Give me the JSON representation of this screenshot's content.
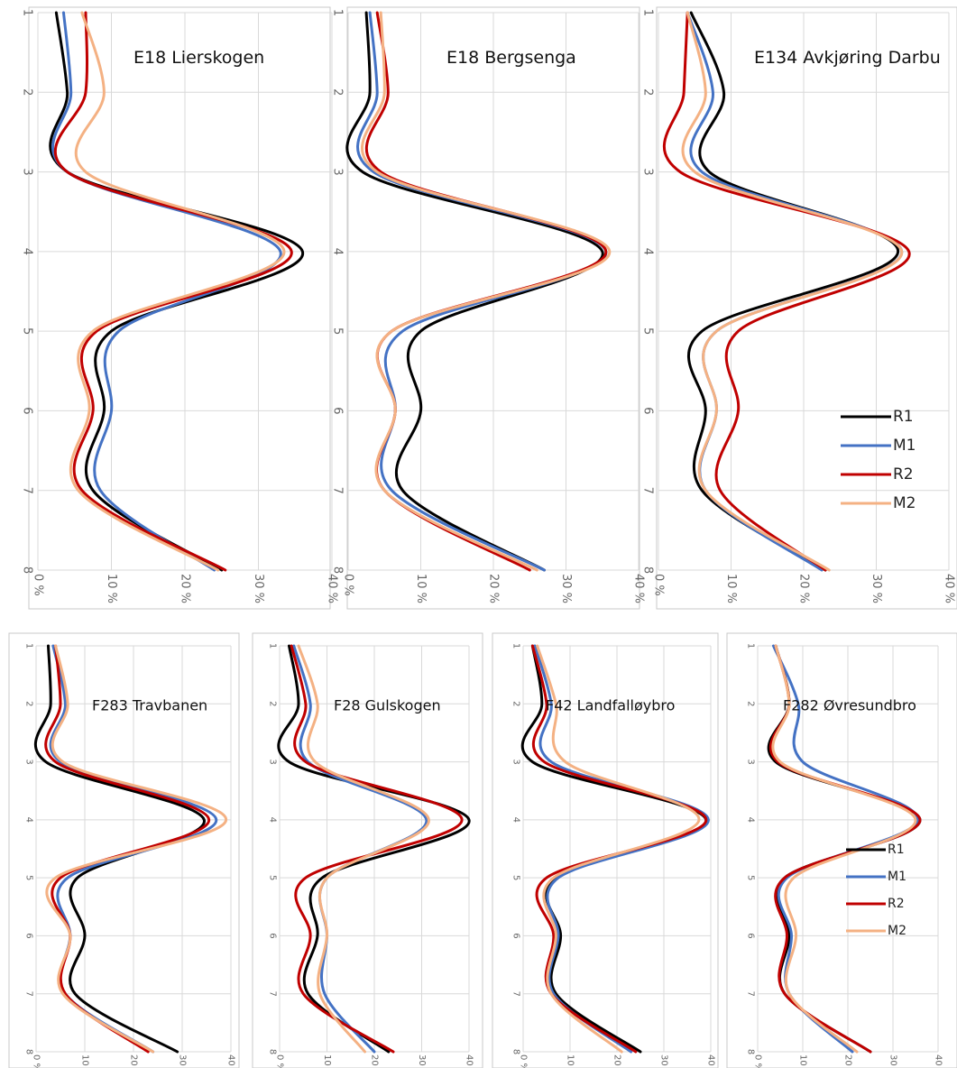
{
  "chart_data": [
    {
      "type": "line",
      "title": "E18 Lierskogen",
      "x": [
        1,
        2,
        3,
        4,
        5,
        6,
        7,
        8
      ],
      "xlim": [
        1,
        8
      ],
      "ylim": [
        0,
        40
      ],
      "x_tick_labels": [
        "1",
        "2",
        "3",
        "4",
        "5",
        "6",
        "7",
        "8"
      ],
      "y_tick_labels": [
        "0 %",
        "10 %",
        "20 %",
        "30 %",
        "40 %"
      ],
      "grid": true,
      "series": [
        {
          "name": "R1",
          "color": "#000000",
          "values": [
            2.5,
            4.0,
            4.0,
            36.0,
            10.0,
            9.0,
            7.5,
            25.0
          ]
        },
        {
          "name": "M1",
          "color": "#4472c4",
          "values": [
            3.5,
            4.5,
            4.0,
            33.0,
            11.0,
            10.0,
            8.5,
            24.0
          ]
        },
        {
          "name": "R2",
          "color": "#c00000",
          "values": [
            6.5,
            6.5,
            4.0,
            34.5,
            8.0,
            7.5,
            6.0,
            25.5
          ]
        },
        {
          "name": "M2",
          "color": "#f4b183",
          "values": [
            6.0,
            9.0,
            6.5,
            33.5,
            7.5,
            7.0,
            5.5,
            24.5
          ]
        }
      ]
    },
    {
      "type": "line",
      "title": "E18 Bergsenga",
      "x": [
        1,
        2,
        3,
        4,
        5,
        6,
        7,
        8
      ],
      "xlim": [
        1,
        8
      ],
      "ylim": [
        0,
        40
      ],
      "x_tick_labels": [
        "1",
        "2",
        "3",
        "4",
        "5",
        "6",
        "7",
        "8"
      ],
      "y_tick_labels": [
        "0 %",
        "10 %",
        "20 %",
        "30 %",
        "40 %"
      ],
      "grid": true,
      "series": [
        {
          "name": "R1",
          "color": "#000000",
          "values": [
            2.5,
            3.0,
            2.0,
            35.0,
            10.0,
            10.0,
            7.5,
            27.0
          ]
        },
        {
          "name": "M1",
          "color": "#4472c4",
          "values": [
            3.0,
            4.0,
            3.5,
            35.5,
            7.5,
            6.5,
            6.0,
            27.0
          ]
        },
        {
          "name": "R2",
          "color": "#c00000",
          "values": [
            4.0,
            5.5,
            4.5,
            35.5,
            6.0,
            6.5,
            5.0,
            25.0
          ]
        },
        {
          "name": "M2",
          "color": "#f4b183",
          "values": [
            4.5,
            5.0,
            4.0,
            36.0,
            6.0,
            6.5,
            5.0,
            26.0
          ]
        }
      ]
    },
    {
      "type": "line",
      "title": "E134 Avkjøring Darbu",
      "x": [
        1,
        2,
        3,
        4,
        5,
        6,
        7,
        8
      ],
      "xlim": [
        1,
        8
      ],
      "ylim": [
        0,
        40
      ],
      "x_tick_labels": [
        "1",
        "2",
        "3",
        "4",
        "5",
        "6",
        "7",
        "8"
      ],
      "y_tick_labels": [
        "0 %",
        "10 %",
        "20 %",
        "30 %",
        "40 %"
      ],
      "grid": true,
      "legend": {
        "position": "right"
      },
      "series": [
        {
          "name": "R1",
          "color": "#000000",
          "values": [
            4.5,
            9.0,
            7.0,
            33.0,
            6.0,
            6.5,
            6.0,
            23.0
          ]
        },
        {
          "name": "M1",
          "color": "#4472c4",
          "values": [
            4.0,
            7.5,
            6.0,
            33.5,
            8.0,
            8.0,
            6.5,
            22.5
          ]
        },
        {
          "name": "R2",
          "color": "#c00000",
          "values": [
            4.0,
            3.5,
            3.0,
            34.5,
            11.0,
            11.0,
            8.5,
            23.0
          ]
        },
        {
          "name": "M2",
          "color": "#f4b183",
          "values": [
            4.0,
            6.5,
            5.0,
            33.5,
            8.0,
            8.0,
            6.5,
            23.5
          ]
        }
      ]
    },
    {
      "type": "line",
      "title": "F283 Travbanen",
      "x": [
        1,
        2,
        3,
        4,
        5,
        6,
        7,
        8
      ],
      "xlim": [
        1,
        8
      ],
      "ylim": [
        0,
        40
      ],
      "x_tick_labels": [
        "1",
        "2",
        "3",
        "4",
        "5",
        "6",
        "7",
        "8"
      ],
      "y_tick_labels": [
        "0 %",
        "10 %",
        "20 %",
        "30 %",
        "40 %"
      ],
      "grid": true,
      "series": [
        {
          "name": "R1",
          "color": "#000000",
          "values": [
            2.5,
            3.0,
            2.0,
            34.5,
            8.5,
            10.0,
            8.0,
            29.0
          ]
        },
        {
          "name": "M1",
          "color": "#4472c4",
          "values": [
            3.5,
            6.0,
            5.0,
            37.0,
            6.5,
            7.0,
            6.0,
            24.0
          ]
        },
        {
          "name": "R2",
          "color": "#c00000",
          "values": [
            4.0,
            5.0,
            4.0,
            35.5,
            5.0,
            7.0,
            6.0,
            23.0
          ]
        },
        {
          "name": "M2",
          "color": "#f4b183",
          "values": [
            4.0,
            6.5,
            5.5,
            39.0,
            4.0,
            7.0,
            5.5,
            24.0
          ]
        }
      ]
    },
    {
      "type": "line",
      "title": "F28 Gulskogen",
      "x": [
        1,
        2,
        3,
        4,
        5,
        6,
        7,
        8
      ],
      "xlim": [
        1,
        8
      ],
      "ylim": [
        0,
        40
      ],
      "x_tick_labels": [
        "1",
        "2",
        "3",
        "4",
        "5",
        "6",
        "7",
        "8"
      ],
      "y_tick_labels": [
        "0 %",
        "10 %",
        "20 %",
        "30 %",
        "40 %"
      ],
      "grid": true,
      "series": [
        {
          "name": "R1",
          "color": "#000000",
          "values": [
            2.0,
            4.0,
            2.0,
            40.0,
            9.0,
            8.0,
            6.0,
            23.0
          ]
        },
        {
          "name": "M1",
          "color": "#4472c4",
          "values": [
            3.0,
            6.5,
            6.0,
            31.0,
            10.0,
            10.0,
            9.5,
            20.0
          ]
        },
        {
          "name": "R2",
          "color": "#c00000",
          "values": [
            2.5,
            5.5,
            5.5,
            38.5,
            5.5,
            6.5,
            5.0,
            24.0
          ]
        },
        {
          "name": "M2",
          "color": "#f4b183",
          "values": [
            4.0,
            8.0,
            7.5,
            31.5,
            10.0,
            10.0,
            8.5,
            18.0
          ]
        }
      ]
    },
    {
      "type": "line",
      "title": "F42 Landfalløybro",
      "x": [
        1,
        2,
        3,
        4,
        5,
        6,
        7,
        8
      ],
      "xlim": [
        1,
        8
      ],
      "ylim": [
        0,
        40
      ],
      "x_tick_labels": [
        "1",
        "2",
        "3",
        "4",
        "5",
        "6",
        "7",
        "8"
      ],
      "y_tick_labels": [
        "0 %",
        "10 %",
        "20 %",
        "30 %",
        "40 %"
      ],
      "grid": true,
      "series": [
        {
          "name": "R1",
          "color": "#000000",
          "values": [
            2.0,
            4.0,
            2.0,
            39.0,
            7.0,
            8.0,
            7.0,
            25.0
          ]
        },
        {
          "name": "M1",
          "color": "#4472c4",
          "values": [
            2.5,
            6.0,
            6.0,
            39.5,
            7.5,
            7.5,
            6.5,
            23.0
          ]
        },
        {
          "name": "R2",
          "color": "#c00000",
          "values": [
            2.0,
            5.0,
            4.5,
            39.0,
            5.0,
            6.5,
            6.0,
            24.0
          ]
        },
        {
          "name": "M2",
          "color": "#f4b183",
          "values": [
            3.0,
            7.0,
            9.0,
            37.5,
            6.5,
            7.0,
            6.0,
            21.0
          ]
        }
      ]
    },
    {
      "type": "line",
      "title": "F282 Øvresundbro",
      "x": [
        1,
        2,
        3,
        4,
        5,
        6,
        7,
        8
      ],
      "xlim": [
        1,
        8
      ],
      "ylim": [
        0,
        40
      ],
      "x_tick_labels": [
        "1",
        "2",
        "3",
        "4",
        "5",
        "6",
        "7",
        "8"
      ],
      "y_tick_labels": [
        "0 %",
        "10 %",
        "20 %",
        "30 %",
        "40 %"
      ],
      "grid": true,
      "legend": {
        "position": "right"
      },
      "series": [
        {
          "name": "R1",
          "color": "#000000",
          "values": [
            4.0,
            7.0,
            4.0,
            36.0,
            6.0,
            7.0,
            6.0,
            25.0
          ]
        },
        {
          "name": "M1",
          "color": "#4472c4",
          "values": [
            3.5,
            9.0,
            10.0,
            35.5,
            6.5,
            7.5,
            7.0,
            21.0
          ]
        },
        {
          "name": "R2",
          "color": "#c00000",
          "values": [
            4.0,
            7.0,
            4.5,
            36.0,
            6.0,
            6.5,
            6.0,
            25.0
          ]
        },
        {
          "name": "M2",
          "color": "#f4b183",
          "values": [
            4.0,
            7.0,
            5.0,
            35.0,
            8.0,
            8.5,
            7.0,
            22.0
          ]
        }
      ]
    }
  ]
}
